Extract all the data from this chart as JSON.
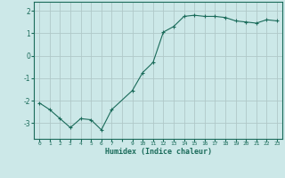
{
  "x": [
    0,
    1,
    2,
    3,
    4,
    5,
    6,
    7,
    9,
    10,
    11,
    12,
    13,
    14,
    15,
    16,
    17,
    18,
    19,
    20,
    21,
    22,
    23
  ],
  "y": [
    -2.1,
    -2.4,
    -2.8,
    -3.2,
    -2.8,
    -2.85,
    -3.3,
    -2.4,
    -1.55,
    -0.75,
    -0.3,
    1.05,
    1.3,
    1.75,
    1.8,
    1.75,
    1.75,
    1.7,
    1.55,
    1.5,
    1.45,
    1.6,
    1.55
  ],
  "line_color": "#1a6b5a",
  "marker": "+",
  "marker_size": 3.0,
  "bg_color": "#cce8e8",
  "grid_color": "#b0c8c8",
  "xlabel": "Humidex (Indice chaleur)",
  "xlim": [
    -0.5,
    23.5
  ],
  "ylim": [
    -3.7,
    2.4
  ],
  "yticks": [
    -3,
    -2,
    -1,
    0,
    1,
    2
  ],
  "xtick_labels": [
    "0",
    "1",
    "2",
    "3",
    "4",
    "5",
    "6",
    "7",
    "",
    "9",
    "10",
    "11",
    "12",
    "13",
    "14",
    "15",
    "16",
    "17",
    "18",
    "19",
    "20",
    "21",
    "22",
    "23"
  ]
}
